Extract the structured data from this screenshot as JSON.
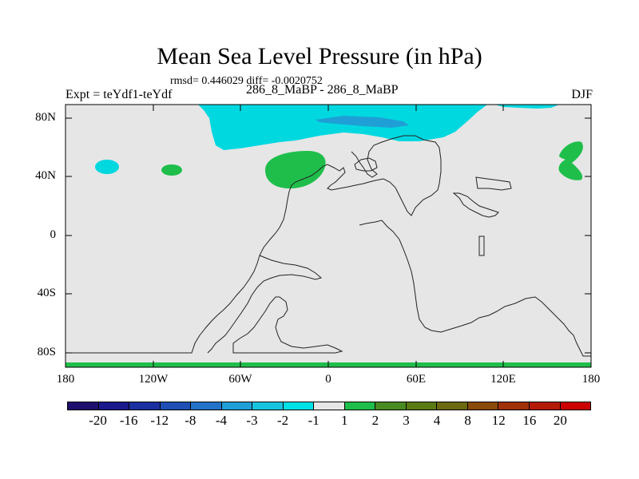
{
  "title": "Mean Sea Level Pressure (in hPa)",
  "stats": "rmsd= 0.446029 diff= -0.0020752",
  "expt_label": "Expt = teYdf1-teYdf",
  "period_label": "286_8_MaBP - 286_8_MaBP",
  "season_label": "DJF",
  "lat_ticks": [
    "80N",
    "40N",
    "0",
    "40S",
    "80S"
  ],
  "lon_ticks": [
    "180",
    "120W",
    "60W",
    "0",
    "60E",
    "120E",
    "180"
  ],
  "colorbar": {
    "colors": [
      "#1e0f6e",
      "#1a1a8c",
      "#1b2fa0",
      "#1f4fb4",
      "#2273c8",
      "#1f9fd6",
      "#17c4de",
      "#00e1e6",
      "#e6e6e6",
      "#1fbe4b",
      "#4a8a23",
      "#5a7a14",
      "#6b6a10",
      "#8a4a08",
      "#a03008",
      "#b41a08",
      "#cc0000"
    ],
    "labels": [
      "-20",
      "-16",
      "-12",
      "-8",
      "-4",
      "-3",
      "-2",
      "-1",
      "1",
      "2",
      "3",
      "4",
      "8",
      "12",
      "16",
      "20"
    ]
  },
  "chart_data": {
    "type": "contour-map",
    "title": "Mean Sea Level Pressure (in hPa)",
    "units": "hPa",
    "field": "difference teYdf1 - teYdf",
    "season": "DJF",
    "rmsd": 0.446029,
    "diff": -0.0020752,
    "x_range_deg": [
      -180,
      180
    ],
    "y_range_deg": [
      -90,
      90
    ],
    "contour_levels": [
      -20,
      -16,
      -12,
      -8,
      -4,
      -3,
      -2,
      -1,
      1,
      2,
      3,
      4,
      8,
      12,
      16,
      20
    ],
    "background_range": "-1 to 1",
    "features": [
      {
        "region": "Arctic band, ~70-90N, 100W-150E",
        "range": "-2 to -1"
      },
      {
        "region": "Arctic core near 80N, 0-60E",
        "range": "-3 to -2"
      },
      {
        "region": "North Pacific ~45N 150W",
        "range": "-2 to -1"
      },
      {
        "region": "~45N 110W",
        "range": "1 to 2"
      },
      {
        "region": "North Atlantic ~45N 20W",
        "range": "1 to 2"
      },
      {
        "region": "NW Pacific ~40-60N 160-175E",
        "range": "1 to 2"
      },
      {
        "region": "Antarctic edge ~90S",
        "range": "1 to 2"
      }
    ]
  }
}
